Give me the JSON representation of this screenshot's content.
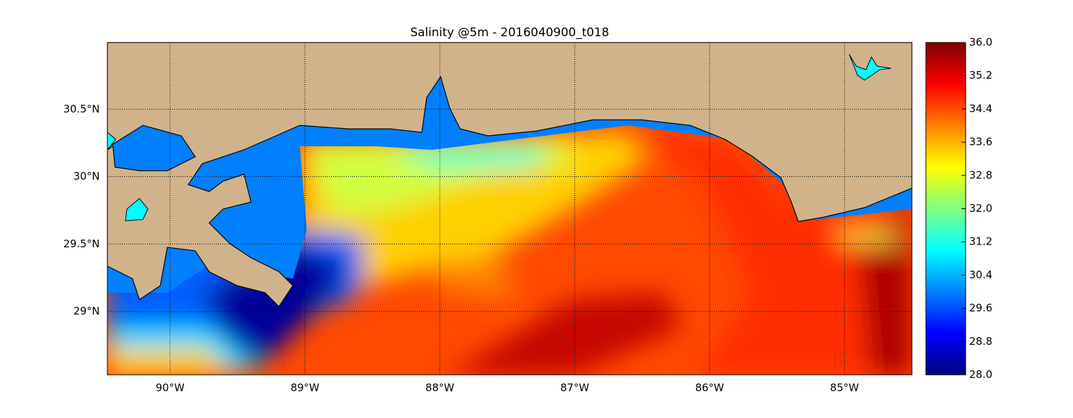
{
  "title": "Salinity @5m - 2016040900_t018",
  "map": {
    "lon_range": [
      -90.465,
      -84.5
    ],
    "lat_range": [
      28.53,
      30.995
    ],
    "lon_ticks": [
      {
        "value": -90,
        "label": "90°W"
      },
      {
        "value": -89,
        "label": "89°W"
      },
      {
        "value": -88,
        "label": "88°W"
      },
      {
        "value": -87,
        "label": "87°W"
      },
      {
        "value": -86,
        "label": "86°W"
      },
      {
        "value": -85,
        "label": "85°W"
      }
    ],
    "lat_ticks": [
      {
        "value": 29,
        "label": "29°N"
      },
      {
        "value": 29.5,
        "label": "29.5°N"
      },
      {
        "value": 30,
        "label": "30°N"
      },
      {
        "value": 30.5,
        "label": "30.5°N"
      }
    ],
    "grid": true
  },
  "colorbar": {
    "range": [
      28,
      36
    ],
    "colormap": [
      "#00007f",
      "#0000ff",
      "#0080ff",
      "#00ffff",
      "#80ff80",
      "#ffff00",
      "#ff8000",
      "#ff0000",
      "#7f0000"
    ],
    "ticks": [
      {
        "value": 28,
        "label": "28.0"
      },
      {
        "value": 28.8,
        "label": "28.8"
      },
      {
        "value": 29.6,
        "label": "29.6"
      },
      {
        "value": 30.4,
        "label": "30.4"
      },
      {
        "value": 31.2,
        "label": "31.2"
      },
      {
        "value": 32,
        "label": "32.0"
      },
      {
        "value": 32.8,
        "label": "32.8"
      },
      {
        "value": 33.6,
        "label": "33.6"
      },
      {
        "value": 34.4,
        "label": "34.4"
      },
      {
        "value": 35.2,
        "label": "35.2"
      },
      {
        "value": 36,
        "label": "36.0"
      }
    ]
  }
}
